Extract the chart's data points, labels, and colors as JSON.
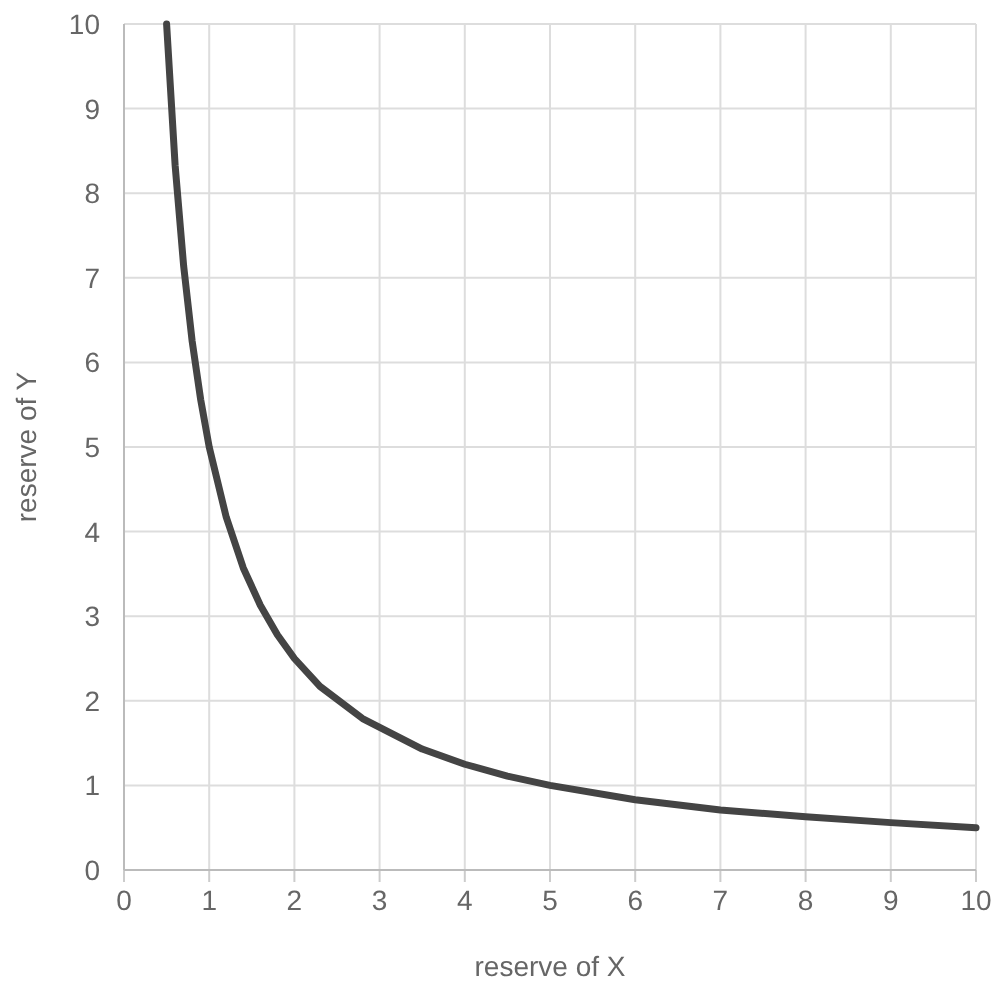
{
  "chart_data": {
    "type": "line",
    "xlabel": "reserve of X",
    "ylabel": "reserve of Y",
    "series": [
      {
        "color": "#444444",
        "x": [
          0.5,
          0.6,
          0.7,
          0.8,
          0.9,
          1,
          1.2,
          1.4,
          1.6,
          1.8,
          2,
          2.3,
          2.8,
          3.5,
          4,
          4.5,
          5,
          6,
          7,
          8,
          9,
          10
        ],
        "values": [
          10,
          8.33,
          7.14,
          6.25,
          5.56,
          5,
          4.17,
          3.57,
          3.13,
          2.78,
          2.5,
          2.17,
          1.79,
          1.43,
          1.25,
          1.11,
          1,
          0.83,
          0.71,
          0.63,
          0.56,
          0.5
        ]
      }
    ],
    "xlim": [
      0,
      10
    ],
    "xticks": [
      0,
      1,
      2,
      3,
      4,
      5,
      6,
      7,
      8,
      9,
      10
    ],
    "ylim": [
      0,
      10
    ],
    "yticks": [
      0,
      1,
      2,
      3,
      4,
      5,
      6,
      7,
      8,
      9,
      10
    ],
    "grid": true,
    "marker": "none",
    "line_style": "solid"
  }
}
